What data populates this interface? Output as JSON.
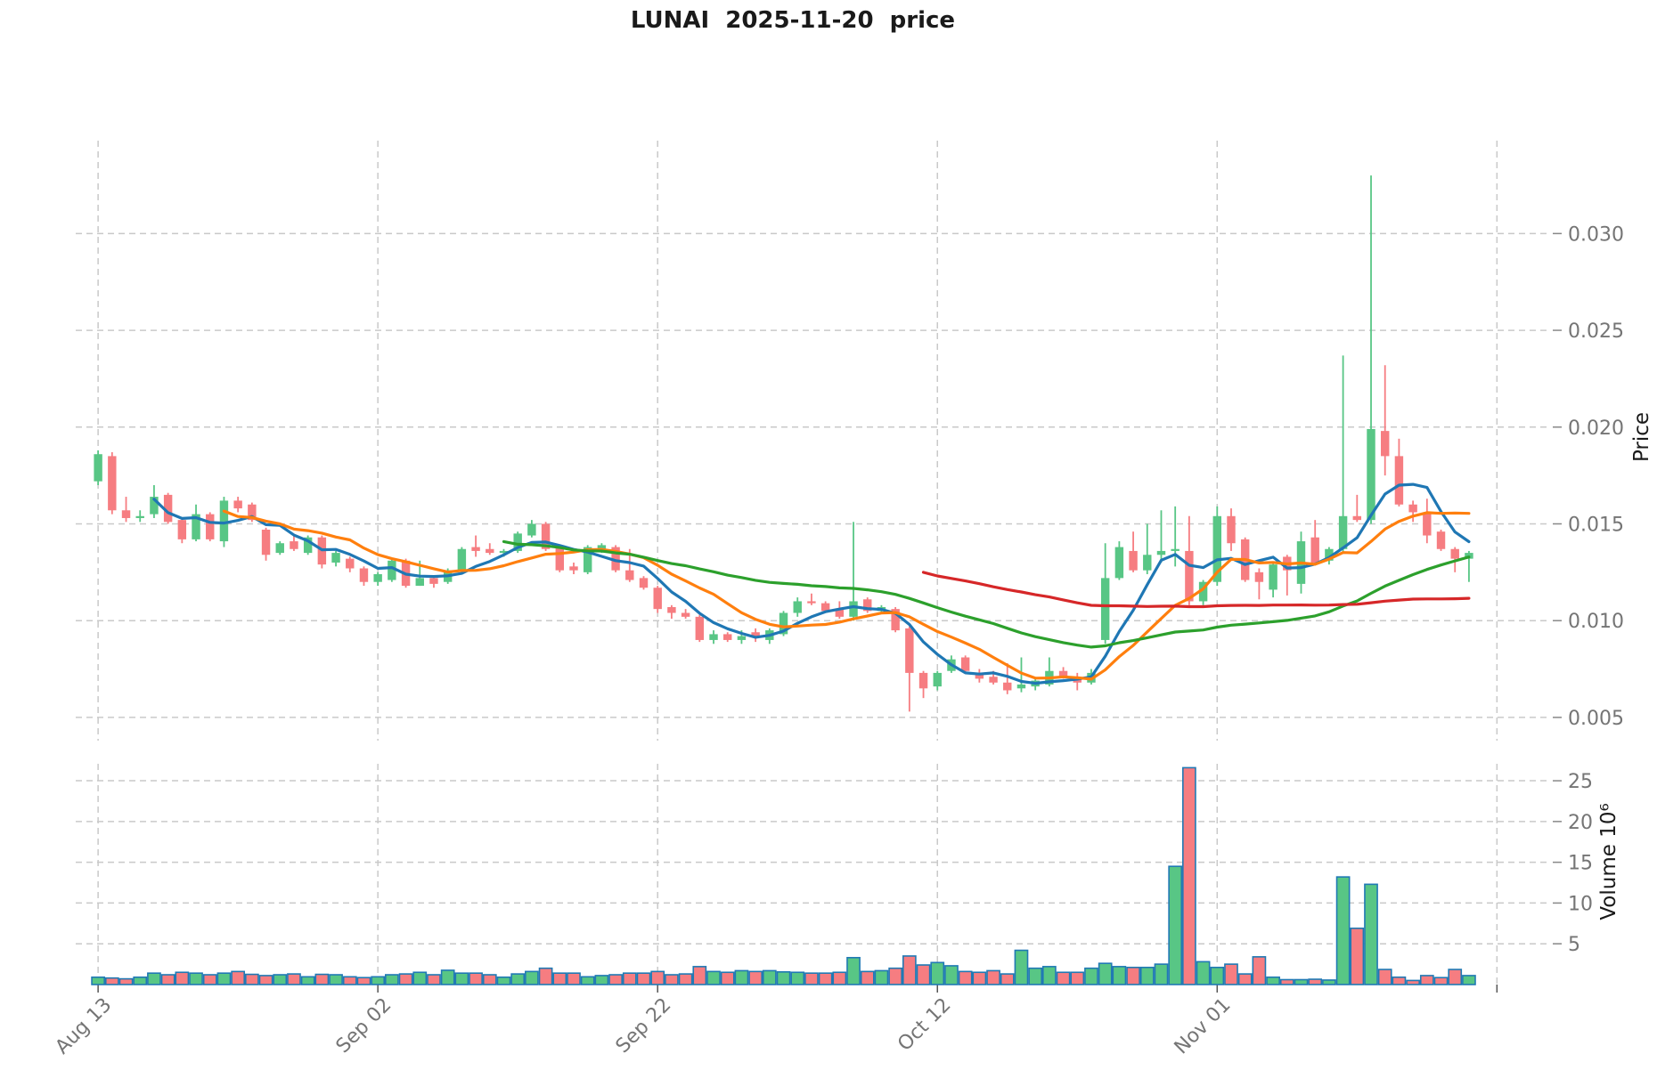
{
  "title": "LUNAI  2025-11-20  price",
  "chart_data": {
    "type": "candlestick",
    "subtype": "candlestick+volume+moving-averages",
    "period": "daily, 2025-08-13 to 2025-11-19",
    "x_ticks": [
      {
        "index": 0,
        "label": "Aug 13"
      },
      {
        "index": 20,
        "label": "Sep 02"
      },
      {
        "index": 40,
        "label": "Sep 22"
      },
      {
        "index": 60,
        "label": "Oct 12"
      },
      {
        "index": 80,
        "label": "Nov 01"
      },
      {
        "index": 100,
        "label": ""
      }
    ],
    "price_axis": {
      "label": "Price",
      "ticks": [
        0.005,
        0.01,
        0.015,
        0.02,
        0.025,
        0.03
      ],
      "ylim": [
        0.0038,
        0.0348
      ]
    },
    "volume_axis": {
      "label": "Volume 10⁶",
      "ticks": [
        5,
        10,
        15,
        20,
        25
      ],
      "ylim_millions": [
        0,
        27.3
      ]
    },
    "open": [
      0.0172,
      0.0185,
      0.0157,
      0.0153,
      0.0155,
      0.0165,
      0.0152,
      0.0142,
      0.0155,
      0.0141,
      0.0162,
      0.016,
      0.0147,
      0.0135,
      0.0141,
      0.0135,
      0.0143,
      0.013,
      0.0132,
      0.0127,
      0.012,
      0.0121,
      0.0131,
      0.0118,
      0.0122,
      0.012,
      0.0126,
      0.0138,
      0.0137,
      0.0135,
      0.0136,
      0.0144,
      0.015,
      0.0138,
      0.0128,
      0.0125,
      0.0136,
      0.0138,
      0.0126,
      0.0122,
      0.0117,
      0.0107,
      0.0104,
      0.0102,
      0.009,
      0.0093,
      0.009,
      0.0094,
      0.009,
      0.0093,
      0.0104,
      0.011,
      0.0109,
      0.0106,
      0.0102,
      0.0111,
      0.0105,
      0.0106,
      0.0096,
      0.0073,
      0.0066,
      0.0074,
      0.0081,
      0.0073,
      0.0071,
      0.0068,
      0.0065,
      0.0066,
      0.0067,
      0.0074,
      0.0071,
      0.0068,
      0.009,
      0.0122,
      0.0136,
      0.0126,
      0.0134,
      0.0136,
      0.0136,
      0.011,
      0.012,
      0.0154,
      0.0142,
      0.0125,
      0.0116,
      0.0133,
      0.0119,
      0.0143,
      0.0131,
      0.0137,
      0.0154,
      0.0152,
      0.0198,
      0.0185,
      0.016,
      0.0156,
      0.0146,
      0.0137,
      0.0132
    ],
    "high": [
      0.0188,
      0.0187,
      0.0164,
      0.0157,
      0.017,
      0.0166,
      0.0153,
      0.016,
      0.0156,
      0.0164,
      0.0164,
      0.0161,
      0.0148,
      0.0141,
      0.0144,
      0.0144,
      0.0144,
      0.0136,
      0.0133,
      0.0128,
      0.0125,
      0.0132,
      0.0132,
      0.0131,
      0.0123,
      0.0127,
      0.0138,
      0.0144,
      0.014,
      0.0137,
      0.0146,
      0.0152,
      0.0151,
      0.0139,
      0.013,
      0.0139,
      0.014,
      0.0139,
      0.0137,
      0.0123,
      0.0118,
      0.0108,
      0.0106,
      0.0103,
      0.0095,
      0.0094,
      0.0095,
      0.0096,
      0.0096,
      0.0105,
      0.0112,
      0.0114,
      0.011,
      0.011,
      0.0151,
      0.0112,
      0.0108,
      0.0107,
      0.0097,
      0.0074,
      0.0074,
      0.0082,
      0.0082,
      0.0075,
      0.0074,
      0.0078,
      0.0081,
      0.007,
      0.0081,
      0.0076,
      0.0073,
      0.0075,
      0.014,
      0.0141,
      0.0146,
      0.015,
      0.0157,
      0.0159,
      0.0154,
      0.0121,
      0.0159,
      0.0158,
      0.0143,
      0.0127,
      0.013,
      0.0134,
      0.0146,
      0.0152,
      0.0138,
      0.0237,
      0.0165,
      0.033,
      0.0232,
      0.0194,
      0.0162,
      0.0163,
      0.0147,
      0.0138,
      0.0136
    ],
    "low": [
      0.017,
      0.0155,
      0.0151,
      0.0151,
      0.0153,
      0.015,
      0.014,
      0.0141,
      0.0141,
      0.0138,
      0.0156,
      0.0151,
      0.0131,
      0.0134,
      0.0136,
      0.0134,
      0.0127,
      0.0128,
      0.0125,
      0.0118,
      0.0118,
      0.012,
      0.0117,
      0.0118,
      0.0117,
      0.0119,
      0.0124,
      0.0133,
      0.0134,
      0.0133,
      0.0135,
      0.0143,
      0.0136,
      0.0125,
      0.0124,
      0.0124,
      0.0135,
      0.0125,
      0.012,
      0.0116,
      0.0104,
      0.0101,
      0.0101,
      0.0089,
      0.0088,
      0.0089,
      0.0088,
      0.0089,
      0.0088,
      0.0092,
      0.0102,
      0.0108,
      0.0104,
      0.0101,
      0.01,
      0.0104,
      0.0104,
      0.0094,
      0.0053,
      0.006,
      0.0064,
      0.0073,
      0.0073,
      0.0068,
      0.0067,
      0.0062,
      0.0063,
      0.0064,
      0.0066,
      0.007,
      0.0064,
      0.0067,
      0.0088,
      0.0121,
      0.0125,
      0.0124,
      0.013,
      0.0128,
      0.0108,
      0.0108,
      0.0118,
      0.0136,
      0.012,
      0.0111,
      0.0112,
      0.0113,
      0.0114,
      0.0129,
      0.0129,
      0.0135,
      0.0151,
      0.015,
      0.0175,
      0.0159,
      0.0151,
      0.014,
      0.0136,
      0.0125,
      0.012
    ],
    "close": [
      0.0186,
      0.0157,
      0.0153,
      0.0154,
      0.0164,
      0.0151,
      0.0142,
      0.0155,
      0.0142,
      0.0162,
      0.0158,
      0.0152,
      0.0134,
      0.014,
      0.0137,
      0.0143,
      0.0129,
      0.0135,
      0.0127,
      0.012,
      0.0124,
      0.0131,
      0.0118,
      0.0122,
      0.0119,
      0.0126,
      0.0137,
      0.0136,
      0.0135,
      0.0136,
      0.0145,
      0.015,
      0.0137,
      0.0126,
      0.0126,
      0.0138,
      0.0139,
      0.0126,
      0.0121,
      0.0117,
      0.0106,
      0.0104,
      0.0102,
      0.009,
      0.0093,
      0.009,
      0.0092,
      0.0092,
      0.0095,
      0.0104,
      0.011,
      0.0109,
      0.0105,
      0.0102,
      0.011,
      0.0105,
      0.0107,
      0.0095,
      0.0073,
      0.0065,
      0.0073,
      0.008,
      0.0074,
      0.007,
      0.0068,
      0.0064,
      0.0067,
      0.0069,
      0.0074,
      0.0071,
      0.0068,
      0.0073,
      0.0122,
      0.0138,
      0.0126,
      0.0134,
      0.0136,
      0.0137,
      0.011,
      0.012,
      0.0154,
      0.014,
      0.0121,
      0.012,
      0.0129,
      0.0126,
      0.0141,
      0.013,
      0.0137,
      0.0154,
      0.0152,
      0.0199,
      0.0185,
      0.016,
      0.0156,
      0.0144,
      0.0137,
      0.0132,
      0.0135
    ],
    "volume_millions": [
      0.9,
      0.8,
      0.7,
      0.9,
      1.4,
      1.2,
      1.5,
      1.4,
      1.2,
      1.4,
      1.6,
      1.25,
      1.1,
      1.2,
      1.3,
      0.95,
      1.25,
      1.2,
      0.95,
      0.85,
      0.95,
      1.2,
      1.3,
      1.5,
      1.2,
      1.75,
      1.4,
      1.4,
      1.2,
      0.9,
      1.3,
      1.6,
      2.0,
      1.4,
      1.4,
      0.95,
      1.1,
      1.2,
      1.4,
      1.4,
      1.6,
      1.2,
      1.3,
      2.2,
      1.6,
      1.5,
      1.7,
      1.6,
      1.7,
      1.55,
      1.5,
      1.4,
      1.4,
      1.5,
      3.3,
      1.6,
      1.7,
      2.0,
      3.5,
      2.4,
      2.7,
      2.3,
      1.6,
      1.5,
      1.7,
      1.3,
      4.2,
      2.0,
      2.2,
      1.5,
      1.5,
      2.0,
      2.6,
      2.2,
      2.1,
      2.1,
      2.5,
      14.5,
      26.6,
      2.8,
      2.1,
      2.5,
      1.3,
      3.4,
      0.9,
      0.6,
      0.6,
      0.65,
      0.55,
      13.2,
      6.9,
      12.3,
      1.85,
      0.9,
      0.5,
      1.1,
      0.85,
      1.85,
      1.1
    ],
    "moving_averages": [
      {
        "name": "MA5",
        "window": 5,
        "color": "#1f77b4"
      },
      {
        "name": "MA10",
        "window": 10,
        "color": "#ff7f0e"
      },
      {
        "name": "MA30",
        "window": 30,
        "color": "#2ca02c"
      },
      {
        "name": "MA60",
        "window": 60,
        "color": "#d62728"
      }
    ],
    "colors": {
      "up": "#58c685",
      "down": "#f67d81",
      "volume_bar_edge": "#2079b4",
      "grid": "#c9c9c9",
      "tick_label": "#757575",
      "background": "#ffffff"
    },
    "legend": "none",
    "grid": "dashed, both panels"
  }
}
